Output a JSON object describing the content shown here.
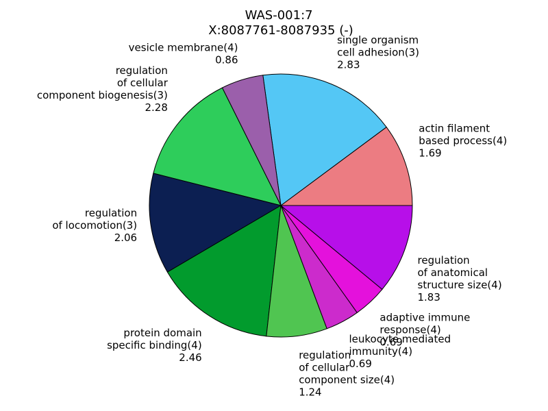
{
  "chart_data": {
    "type": "pie",
    "title_lines": [
      "WAS-001:7",
      "X:8087761-8087935 (-)"
    ],
    "slices": [
      {
        "label_lines": [
          "actin filament",
          "based process(4)"
        ],
        "value": 1.69,
        "value_text": "1.69",
        "color": "#ec7c82"
      },
      {
        "label_lines": [
          "single organism",
          "cell adhesion(3)"
        ],
        "value": 2.83,
        "value_text": "2.83",
        "color": "#54c7f5"
      },
      {
        "label_lines": [
          "vesicle membrane(4)"
        ],
        "value": 0.86,
        "value_text": "0.86",
        "color": "#9b5fab"
      },
      {
        "label_lines": [
          "regulation",
          "of cellular",
          "component biogenesis(3)"
        ],
        "value": 2.28,
        "value_text": "2.28",
        "color": "#2ecd5b"
      },
      {
        "label_lines": [
          "regulation",
          "of locomotion(3)"
        ],
        "value": 2.06,
        "value_text": "2.06",
        "color": "#0c1f52"
      },
      {
        "label_lines": [
          "protein domain",
          "specific binding(4)"
        ],
        "value": 2.46,
        "value_text": "2.46",
        "color": "#029b2d"
      },
      {
        "label_lines": [
          "regulation",
          "of cellular",
          "component size(4)"
        ],
        "value": 1.24,
        "value_text": "1.24",
        "color": "#50c551"
      },
      {
        "label_lines": [
          "leukocyte mediated",
          "immunity(4)"
        ],
        "value": 0.69,
        "value_text": "0.69",
        "color": "#cc2bcc"
      },
      {
        "label_lines": [
          "adaptive immune",
          "response(4)"
        ],
        "value": 0.69,
        "value_text": "0.69",
        "color": "#e411dc"
      },
      {
        "label_lines": [
          "regulation",
          "of anatomical",
          "structure size(4)"
        ],
        "value": 1.83,
        "value_text": "1.83",
        "color": "#b70fe9"
      }
    ]
  }
}
